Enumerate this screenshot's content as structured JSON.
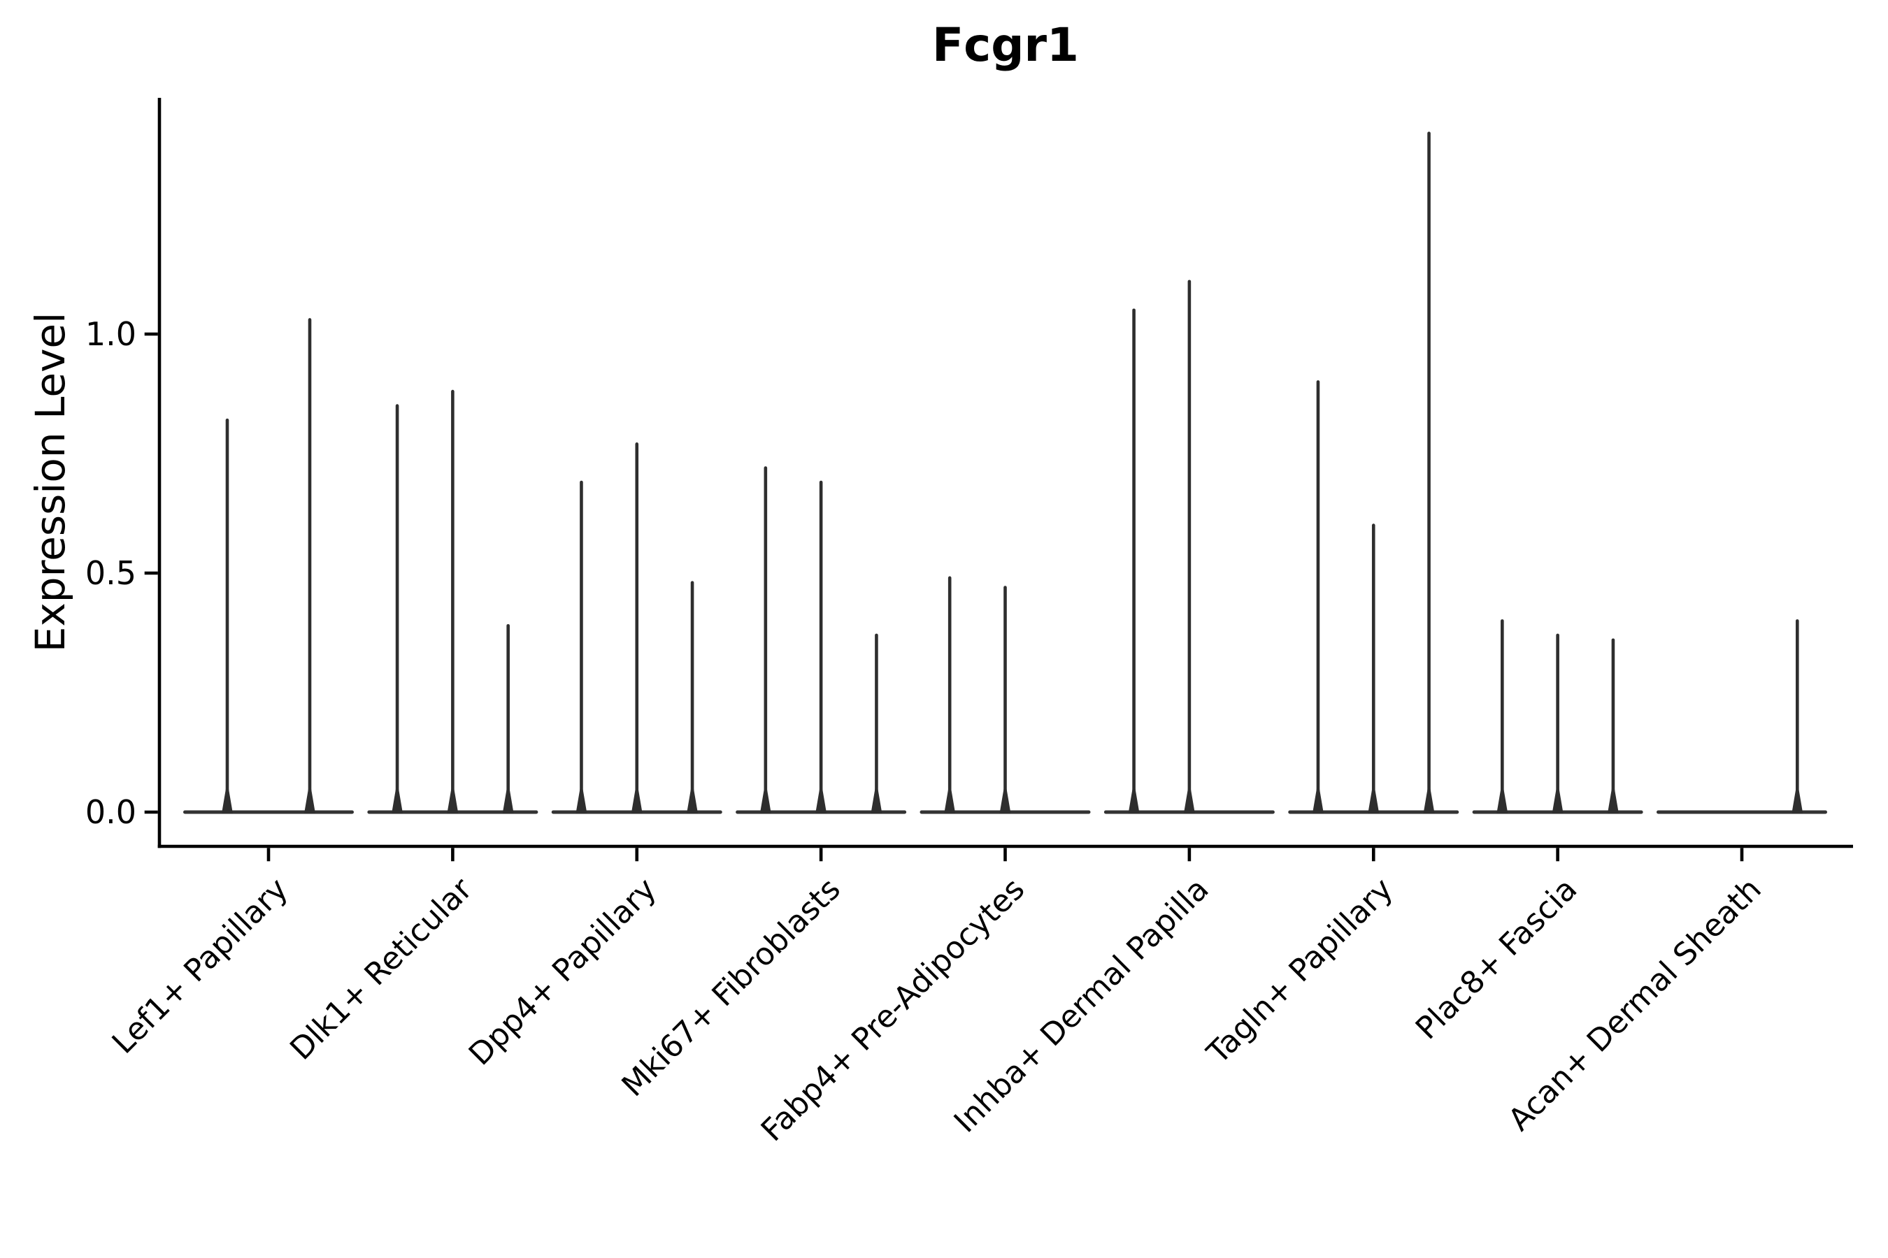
{
  "chart_data": {
    "type": "violin",
    "title": "Fcgr1",
    "ylabel": "Expression Level",
    "xlabel": "",
    "grid": false,
    "legend": "none",
    "ytick_labels": [
      "0.0",
      "0.5",
      "1.0"
    ],
    "ytick_values": [
      0.0,
      0.5,
      1.0
    ],
    "ylim": [
      -0.07,
      1.49
    ],
    "axis_color": "#000000",
    "violin_color": "#2e2e2e",
    "baseline_color": "#333333",
    "categories": [
      "Lef1+ Papillary",
      "Dlk1+ Reticular",
      "Dpp4+ Papillary",
      "Mki67+ Fibroblasts",
      "Fabp4+ Pre-Adipocytes",
      "Inhba+ Dermal Papilla",
      "Tagln+ Papillary",
      "Plac8+ Fascia",
      "Acan+ Dermal Sheath"
    ],
    "groups": [
      {
        "label": "Lef1+ Papillary",
        "violin_max_values": [
          0.82,
          1.03
        ]
      },
      {
        "label": "Dlk1+ Reticular",
        "violin_max_values": [
          0.85,
          0.88,
          0.39
        ]
      },
      {
        "label": "Dpp4+ Papillary",
        "violin_max_values": [
          0.69,
          0.77,
          0.48
        ]
      },
      {
        "label": "Mki67+ Fibroblasts",
        "violin_max_values": [
          0.72,
          0.69,
          0.37
        ]
      },
      {
        "label": "Fabp4+ Pre-Adipocytes",
        "violin_max_values": [
          0.49,
          0.47,
          0
        ]
      },
      {
        "label": "Inhba+ Dermal Papilla",
        "violin_max_values": [
          1.05,
          1.11,
          0
        ]
      },
      {
        "label": "Tagln+ Papillary",
        "violin_max_values": [
          0.9,
          0.6,
          1.42
        ]
      },
      {
        "label": "Plac8+ Fascia",
        "violin_max_values": [
          0.4,
          0.37,
          0.36
        ]
      },
      {
        "label": "Acan+ Dermal Sheath",
        "violin_max_values": [
          0,
          0,
          0.4
        ]
      }
    ]
  }
}
